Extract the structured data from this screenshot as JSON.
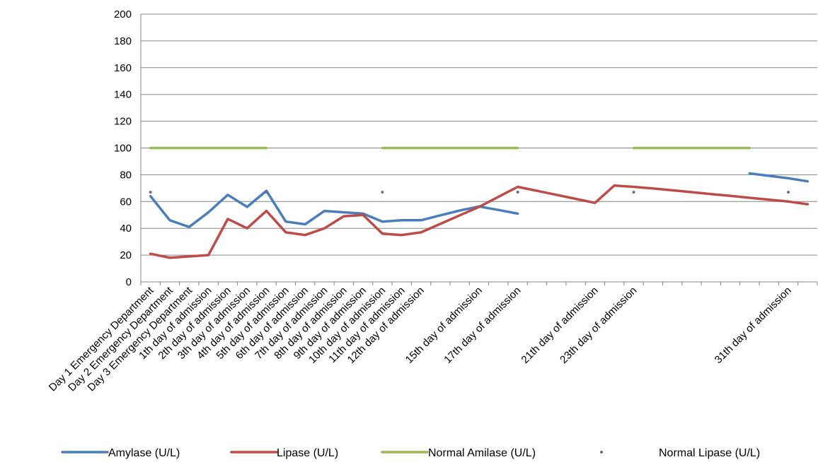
{
  "chart_data": {
    "type": "line",
    "title": "",
    "xlabel": "",
    "ylabel": "",
    "ylim": [
      0,
      200
    ],
    "yticks": [
      0,
      20,
      40,
      60,
      80,
      100,
      120,
      140,
      160,
      180,
      200
    ],
    "grid": "horizontal",
    "legend_position": "bottom",
    "categories": [
      "Day 1 Emergency Department",
      "Day 2 Emergency Department",
      "Day 3 Emergency Department",
      "1th day of admission",
      "2th day of admission",
      "3th day of admission",
      "4th day of admission",
      "5th day of admission",
      "6th day of admission",
      "7th day of admission",
      "8th day of admission",
      "9th day of admission",
      "10th day of admission",
      "11th day of admission",
      "12th day of admission",
      "",
      "",
      "15th day of admission",
      "",
      "17th day of admission",
      "",
      "",
      "",
      "21th day of admission",
      "",
      "23th day of admission",
      "",
      "",
      "",
      "",
      "",
      "",
      "",
      "31th day of admission",
      ""
    ],
    "series": [
      {
        "name": "Amylase (U/L)",
        "color": "#4a7ebb",
        "style": "line",
        "values": [
          64,
          46,
          41,
          52,
          65,
          56,
          68,
          45,
          43,
          53,
          52,
          51,
          45,
          46,
          46,
          49.7,
          53.3,
          56.3,
          53.7,
          51,
          null,
          null,
          null,
          null,
          null,
          null,
          null,
          null,
          null,
          null,
          null,
          81,
          79.2,
          77.4,
          75.1
        ]
      },
      {
        "name": "Lipase (U/L)",
        "color": "#be4b48",
        "style": "line",
        "values": [
          21,
          18,
          19,
          20,
          47,
          40,
          53,
          37,
          35,
          40,
          49,
          50,
          36,
          35,
          37,
          43.3,
          49.7,
          56,
          63.5,
          71,
          68,
          65,
          62,
          59,
          72,
          71,
          69.8,
          68.4,
          67,
          65.6,
          64.2,
          62.8,
          61.4,
          60,
          58
        ]
      },
      {
        "name": "Normal Amilase (U/L)",
        "color": "#98b954",
        "style": "segments",
        "values": [
          100,
          100,
          100,
          100,
          100,
          100,
          100,
          null,
          null,
          null,
          null,
          null,
          100,
          100,
          100,
          100,
          100,
          100,
          100,
          100,
          null,
          null,
          null,
          null,
          null,
          100,
          100,
          100,
          100,
          100,
          100,
          100,
          null,
          null,
          null
        ]
      },
      {
        "name": "Normal Lipase (U/L)",
        "color": "#7d60a0",
        "style": "markers",
        "values": [
          67,
          null,
          null,
          null,
          null,
          null,
          67,
          null,
          null,
          null,
          null,
          null,
          67,
          null,
          null,
          null,
          null,
          null,
          null,
          67,
          null,
          null,
          null,
          null,
          null,
          67,
          null,
          null,
          null,
          null,
          null,
          null,
          null,
          67,
          null
        ]
      }
    ]
  }
}
